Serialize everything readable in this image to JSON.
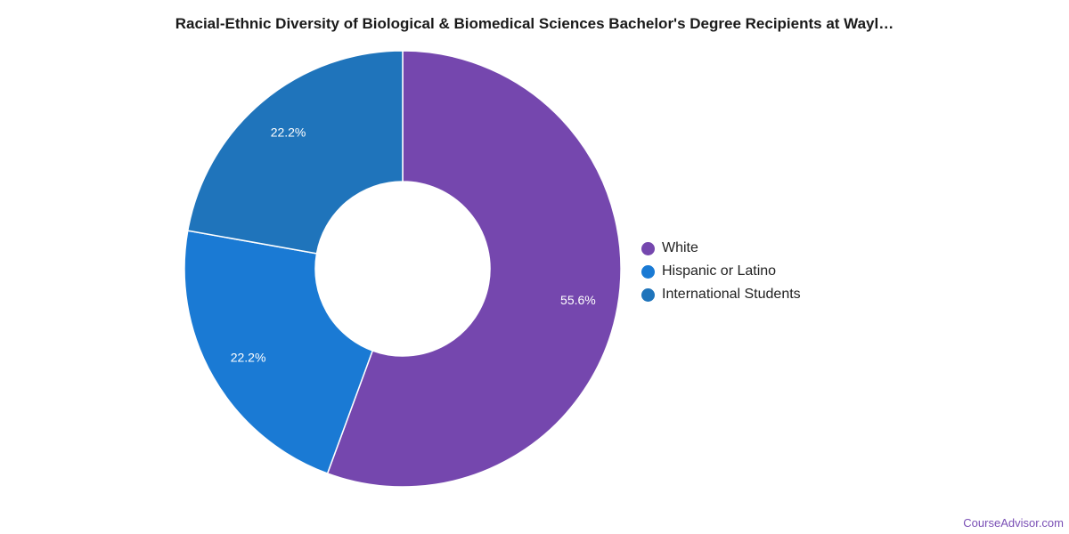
{
  "chart_data": {
    "type": "pie",
    "donut": true,
    "title": "Racial-Ethnic Diversity of Biological & Biomedical Sciences Bachelor's Degree Recipients at Wayl…",
    "slices": [
      {
        "label": "White",
        "value": 55.6,
        "display": "55.6%",
        "color": "#7547ae"
      },
      {
        "label": "Hispanic or Latino",
        "value": 22.2,
        "display": "22.2%",
        "color": "#1a7ad4"
      },
      {
        "label": "International Students",
        "value": 22.2,
        "display": "22.2%",
        "color": "#1f74bb"
      }
    ],
    "legend_position": "right"
  },
  "footer": {
    "source": "CourseAdvisor.com"
  }
}
